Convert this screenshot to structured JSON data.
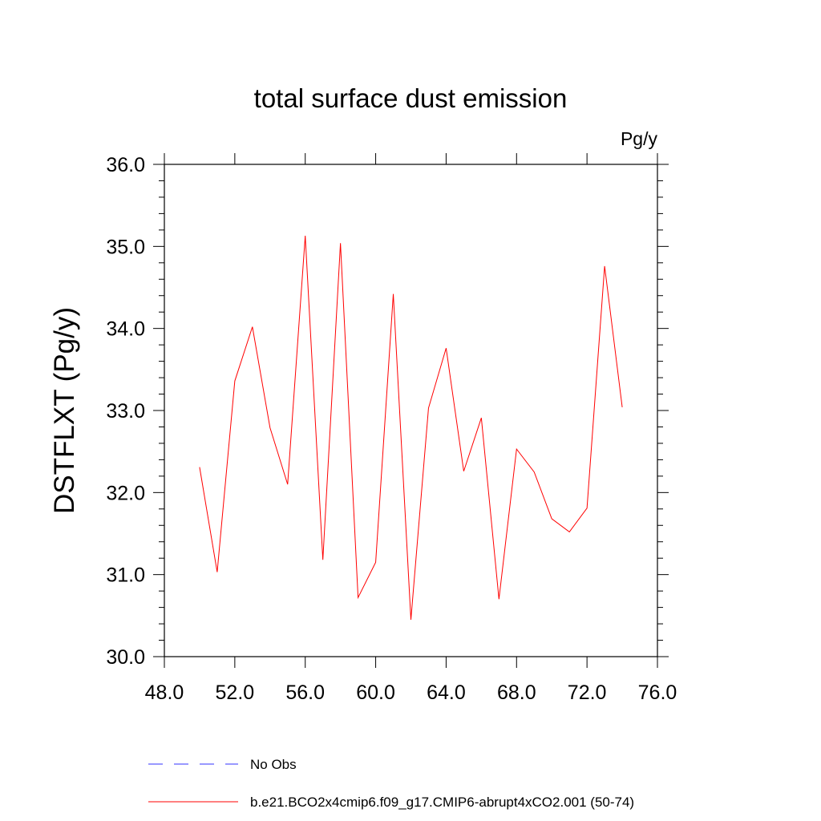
{
  "chart_data": {
    "type": "line",
    "title": "total surface dust emission",
    "units_label": "Pg/y",
    "ylabel": "DSTFLXT  (Pg/y)",
    "xlabel": "",
    "xlim": [
      48.0,
      76.0
    ],
    "ylim": [
      30.0,
      36.0
    ],
    "xticks": [
      48.0,
      52.0,
      56.0,
      60.0,
      64.0,
      68.0,
      72.0,
      76.0
    ],
    "xtick_labels": [
      "48.0",
      "52.0",
      "56.0",
      "60.0",
      "64.0",
      "68.0",
      "72.0",
      "76.0"
    ],
    "yticks": [
      30.0,
      31.0,
      32.0,
      33.0,
      34.0,
      35.0,
      36.0
    ],
    "ytick_labels": [
      "30.0",
      "31.0",
      "32.0",
      "33.0",
      "34.0",
      "35.0",
      "36.0"
    ],
    "grid": false,
    "legend_position": "bottom",
    "series": [
      {
        "name": "No Obs",
        "color": "#3333ff",
        "style": "dashed",
        "x": [],
        "y": []
      },
      {
        "name": "b.e21.BCO2x4cmip6.f09_g17.CMIP6-abrupt4xCO2.001 (50-74)",
        "color": "#ff0000",
        "style": "solid",
        "x": [
          50,
          51,
          52,
          53,
          54,
          55,
          56,
          57,
          58,
          59,
          60,
          61,
          62,
          63,
          64,
          65,
          66,
          67,
          68,
          69,
          70,
          71,
          72,
          73,
          74
        ],
        "y": [
          32.31,
          31.03,
          33.36,
          34.02,
          32.79,
          32.1,
          35.13,
          31.18,
          35.04,
          30.72,
          31.15,
          34.42,
          30.45,
          33.03,
          33.76,
          32.26,
          32.91,
          30.7,
          32.53,
          32.25,
          31.68,
          31.52,
          31.81,
          34.76,
          33.04
        ]
      }
    ]
  }
}
